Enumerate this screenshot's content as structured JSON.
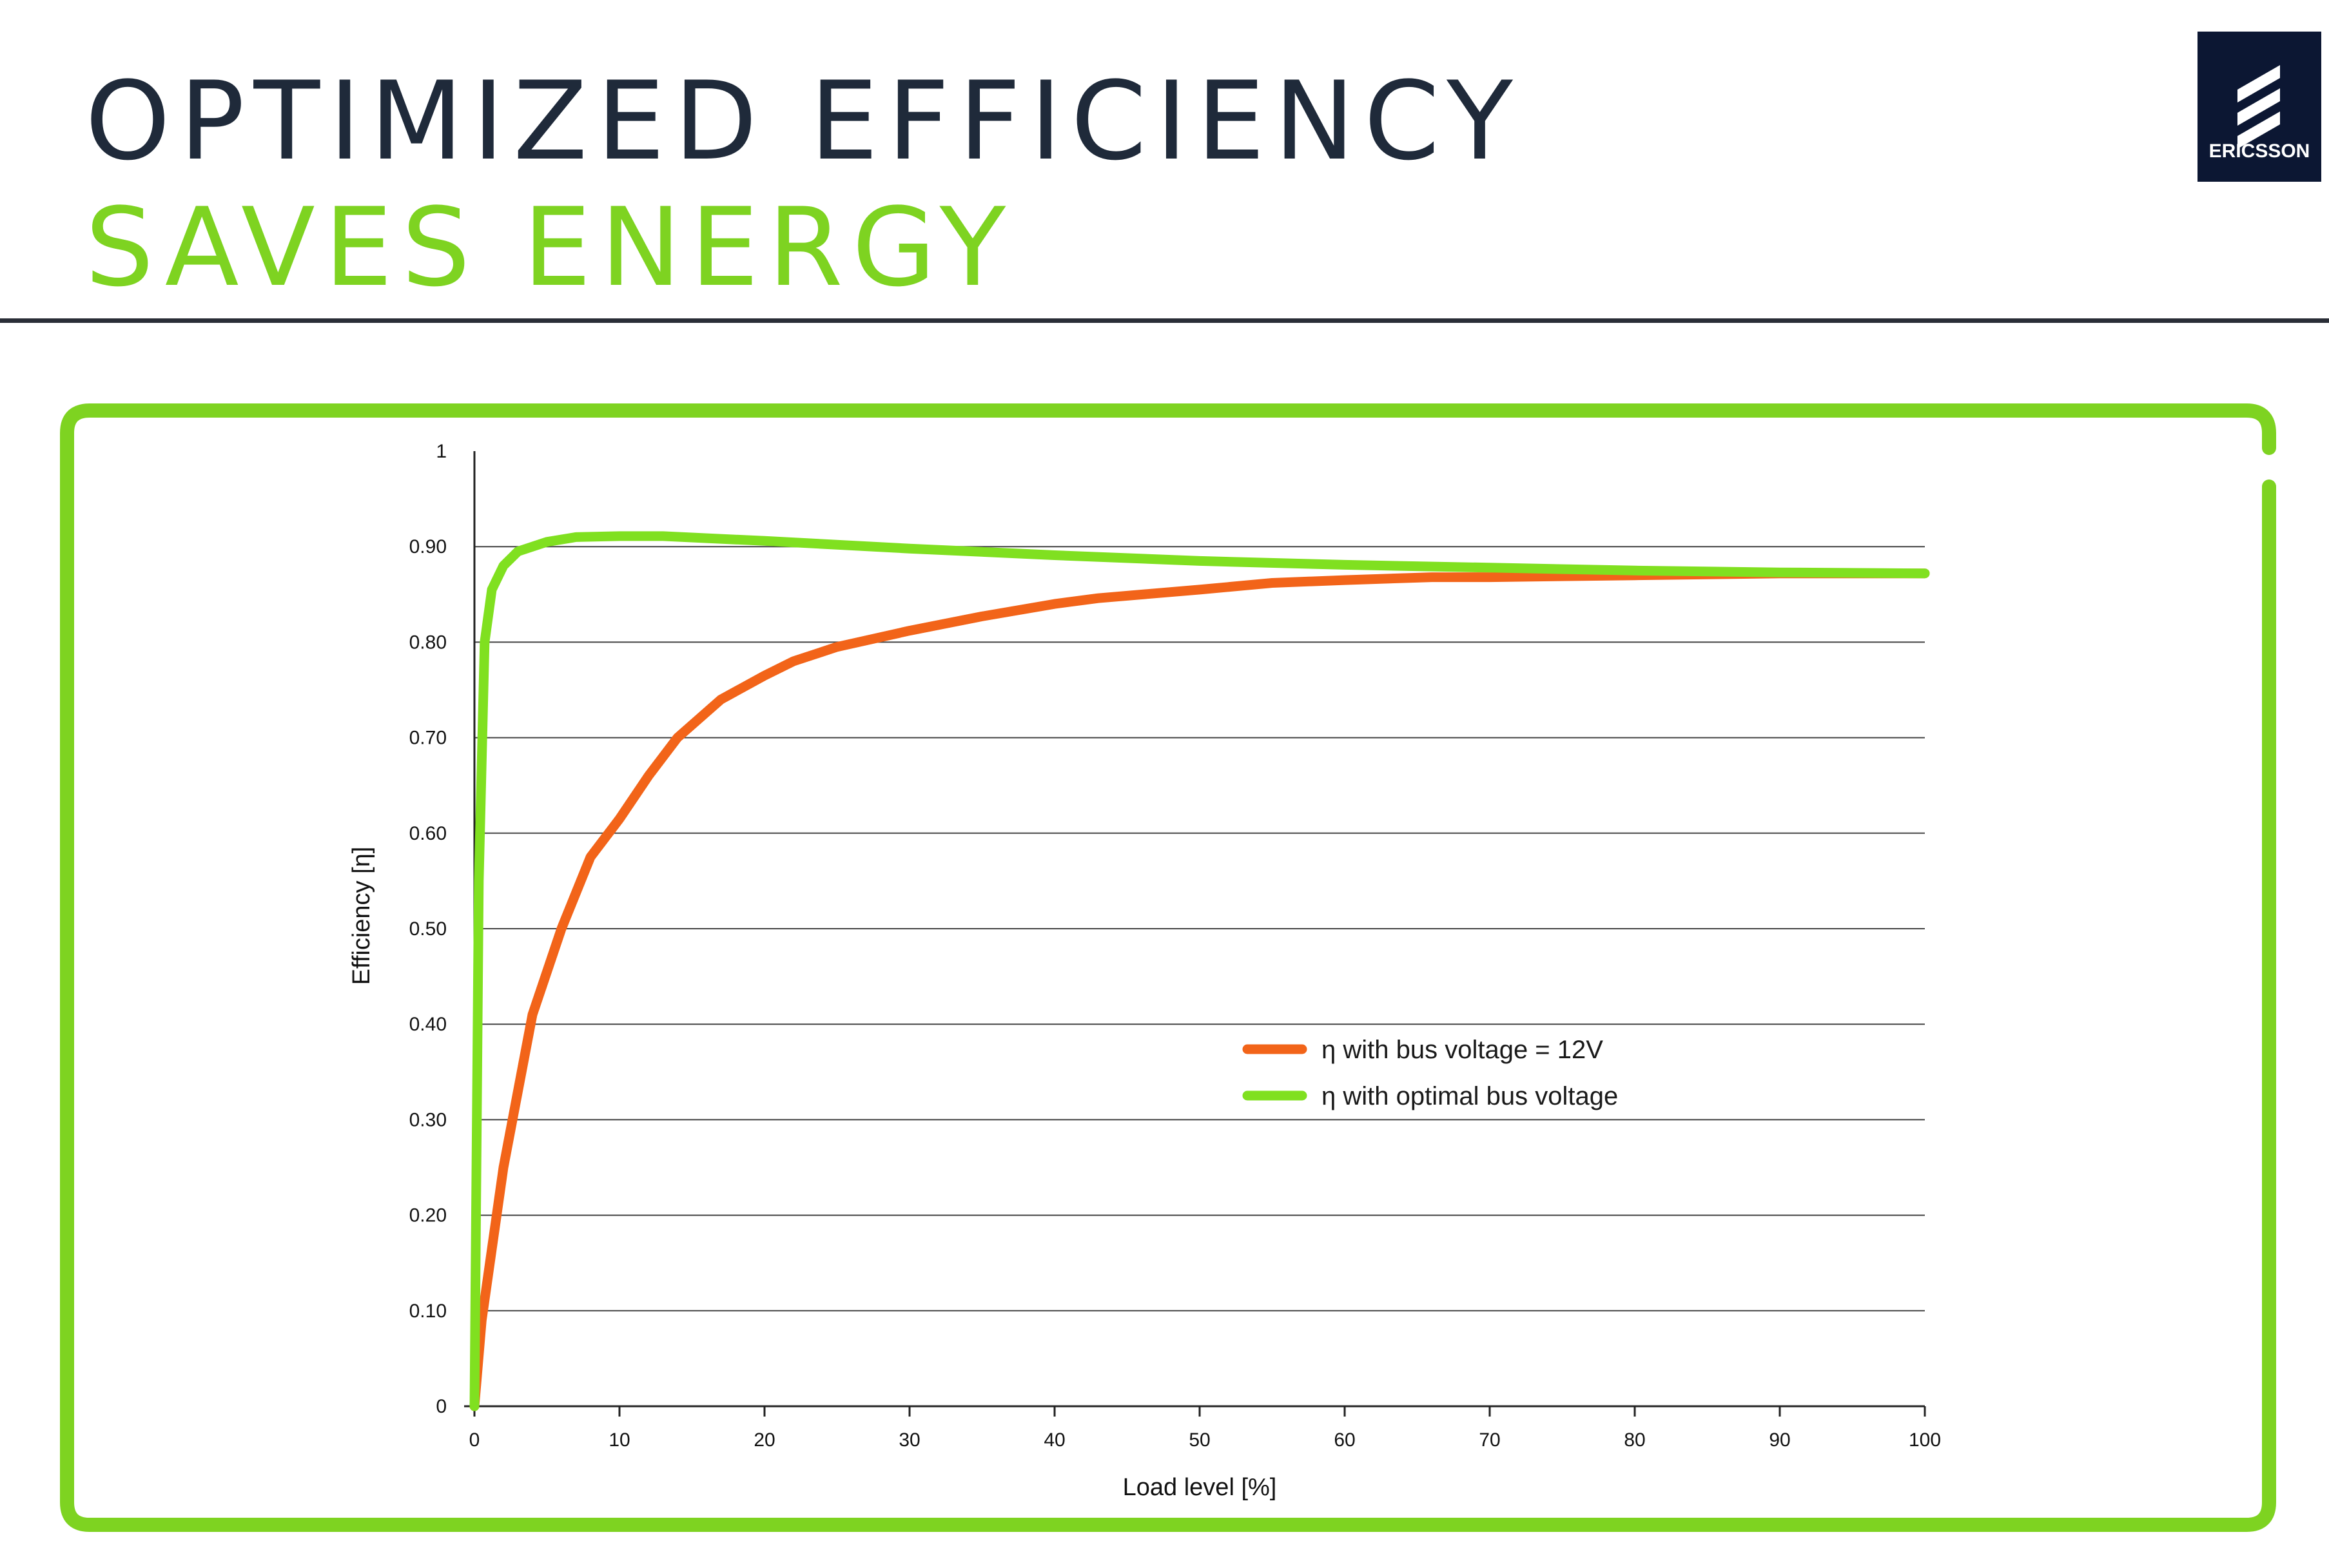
{
  "header": {
    "title_line1": "OPTIMIZED EFFICIENCY",
    "title_line2": "SAVES ENERGY",
    "title_line2_color": "#7ed321"
  },
  "logo": {
    "brand": "ERICSSON",
    "background": "#0c1733"
  },
  "colors": {
    "frame": "#7ed321",
    "rule": "#2a2e37",
    "series_12v": "#f26419",
    "series_optimal": "#80e020"
  },
  "chart_data": {
    "type": "line",
    "xlabel": "Load level [%]",
    "ylabel": "Efficiency [η]",
    "xlim": [
      0,
      100
    ],
    "ylim": [
      0,
      1
    ],
    "x_ticks": [
      "0",
      "10",
      "20",
      "30",
      "40",
      "50",
      "60",
      "70",
      "80",
      "90",
      "100"
    ],
    "y_ticks": [
      "0",
      "0.10",
      "0.20",
      "0.30",
      "0.40",
      "0.50",
      "0.60",
      "0.70",
      "0.80",
      "0.90",
      "1"
    ],
    "grid": "horizontal",
    "legend_position": "center-right",
    "series": [
      {
        "name": "η with bus voltage = 12V",
        "color": "#f26419",
        "points": [
          [
            0,
            0
          ],
          [
            0.5,
            0.09
          ],
          [
            2,
            0.25
          ],
          [
            4,
            0.41
          ],
          [
            6,
            0.5
          ],
          [
            8,
            0.575
          ],
          [
            10,
            0.615
          ],
          [
            12,
            0.66
          ],
          [
            14,
            0.7
          ],
          [
            17,
            0.74
          ],
          [
            20,
            0.765
          ],
          [
            22,
            0.78
          ],
          [
            25,
            0.795
          ],
          [
            30,
            0.812
          ],
          [
            35,
            0.827
          ],
          [
            40,
            0.84
          ],
          [
            43,
            0.846
          ],
          [
            50,
            0.855
          ],
          [
            55,
            0.862
          ],
          [
            60,
            0.865
          ],
          [
            66,
            0.868
          ],
          [
            70,
            0.868
          ],
          [
            80,
            0.87
          ],
          [
            90,
            0.872
          ],
          [
            100,
            0.872
          ]
        ]
      },
      {
        "name": "η with optimal bus voltage",
        "color": "#80e020",
        "points": [
          [
            0,
            0
          ],
          [
            0.3,
            0.55
          ],
          [
            0.7,
            0.8
          ],
          [
            1.2,
            0.855
          ],
          [
            2,
            0.88
          ],
          [
            3,
            0.895
          ],
          [
            5,
            0.905
          ],
          [
            7,
            0.91
          ],
          [
            10,
            0.911
          ],
          [
            13,
            0.911
          ],
          [
            20,
            0.906
          ],
          [
            30,
            0.898
          ],
          [
            40,
            0.891
          ],
          [
            50,
            0.885
          ],
          [
            60,
            0.881
          ],
          [
            70,
            0.878
          ],
          [
            80,
            0.875
          ],
          [
            90,
            0.873
          ],
          [
            100,
            0.872
          ]
        ]
      }
    ]
  }
}
